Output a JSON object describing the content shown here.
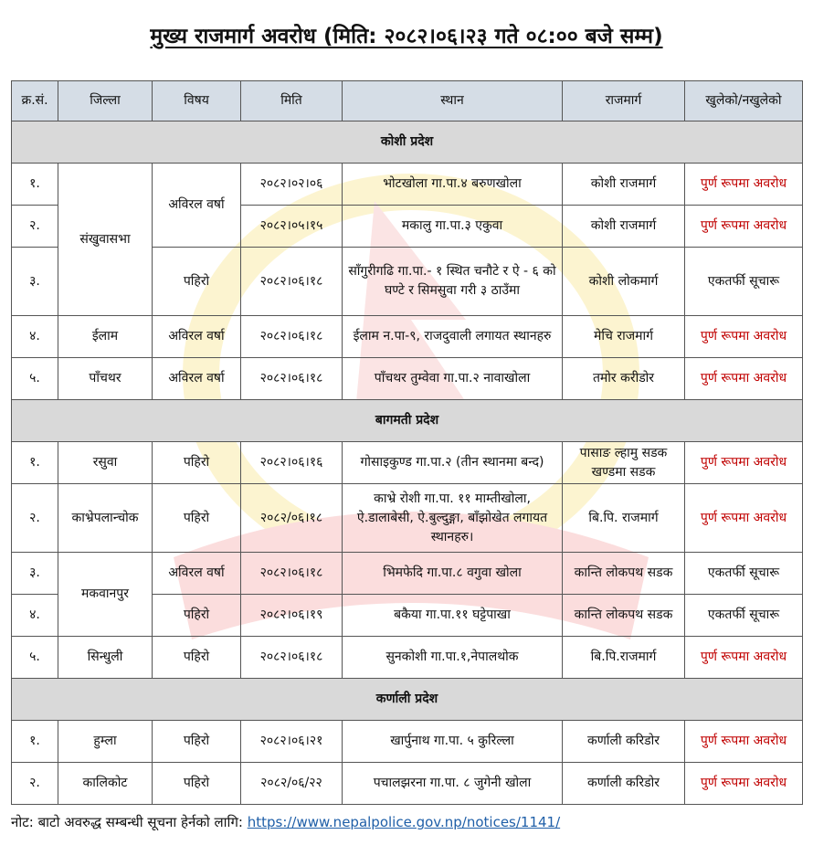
{
  "title": "मुख्य राजमार्ग अवरोध (मिति: २०८२।०६।२३ गते ०८:०० बजे सम्म)",
  "colors": {
    "blocked": "#c00000",
    "header_bg": "#d5dde6",
    "section_bg": "#d9d9d9",
    "link": "#1f5fa8"
  },
  "headers": [
    "क्र.सं.",
    "जिल्ला",
    "विषय",
    "मिति",
    "स्थान",
    "राजमार्ग",
    "खुलेको/नखुलेको"
  ],
  "sections": [
    {
      "name": "कोशी प्रदेश",
      "rows": [
        {
          "sn": "१.",
          "district": "संखुवासभा",
          "subject": "अविरल वर्षा",
          "date": "२०८२।०२।०६",
          "place": "भोटखोला गा.पा.४ बरुणखोला",
          "highway": "कोशी राजमार्ग",
          "status": "पुर्ण रूपमा अवरोध"
        },
        {
          "sn": "२.",
          "date": "२०८२।०५।१५",
          "place": "मकालु गा.पा.३ एकुवा",
          "highway": "कोशी राजमार्ग",
          "status": "पुर्ण रूपमा अवरोध"
        },
        {
          "sn": "३.",
          "subject": "पहिरो",
          "date": "२०८२।०६।१८",
          "place": "साँगुरीगढि गा.पा.- १ स्थित चनौटे र ऐ - ६ को घण्टे र सिमसुवा गरी ३ ठाउँमा",
          "highway": "कोशी लोकमार्ग",
          "status": "एकतर्फी सूचारू"
        },
        {
          "sn": "४.",
          "district": "ईलाम",
          "subject": "अविरल वर्षा",
          "date": "२०८२।०६।१८",
          "place": "ईलाम न.पा-९, राजदुवाली लगायत स्थानहरु",
          "highway": "मेचि राजमार्ग",
          "status": "पुर्ण रूपमा अवरोध"
        },
        {
          "sn": "५.",
          "district": "पाँचथर",
          "subject": "अविरल वर्षा",
          "date": "२०८२।०६।१८",
          "place": "पाँचथर तुम्वेवा गा.पा.२ नावाखोला",
          "highway": "तमोर करीडोर",
          "status": "पुर्ण रूपमा अवरोध"
        }
      ]
    },
    {
      "name": "बागमती प्रदेश",
      "rows": [
        {
          "sn": "१.",
          "district": "रसुवा",
          "subject": "पहिरो",
          "date": "२०८२।०६।१६",
          "place": "गोसाइकुण्ड गा.पा.२ (तीन स्थानमा बन्द)",
          "highway": "पासाङ ल्हामु सडक खण्डमा सडक",
          "status": "पुर्ण रूपमा अवरोध"
        },
        {
          "sn": "२.",
          "district": "काभ्रेपलान्चोक",
          "subject": "पहिरो",
          "date": "२०८२/०६।१८",
          "place": "काभ्रे रोशी गा.पा. ११ माम्तीखोला, ऐ.डालाबेसी, ऐ.बुल्दुङ्गा, बाँझोखेत लगायत स्थानहरु।",
          "highway": "बि.पि. राजमार्ग",
          "status": "पुर्ण रूपमा अवरोध"
        },
        {
          "sn": "३.",
          "district": "मकवानपुर",
          "subject": "अविरल वर्षा",
          "date": "२०८२।०६।१८",
          "place": "भिमफेदि गा.पा.८ वगुवा खोला",
          "highway": "कान्ति लोकपथ सडक",
          "status": "एकतर्फी  सूचारू"
        },
        {
          "sn": "४.",
          "subject": "पहिरो",
          "date": "२०८२।०६।१९",
          "place": "बकैया गा.पा.११ घट्टेपाखा",
          "highway": "कान्ति लोकपथ सडक",
          "status": "एकतर्फी  सूचारू"
        },
        {
          "sn": "५.",
          "district": "सिन्धुली",
          "subject": "पहिरो",
          "date": "२०८२।०६।१८",
          "place": "सुनकोशी गा.पा.१,नेपालथोक",
          "highway": "बि.पि.राजमार्ग",
          "status": "पुर्ण रूपमा अवरोध"
        }
      ]
    },
    {
      "name": "कर्णाली प्रदेश",
      "rows": [
        {
          "sn": "१.",
          "district": "हुम्ला",
          "subject": "पहिरो",
          "date": "२०८२।०६।२१",
          "place": "खार्पुनाथ गा.पा. ५ कुरिल्ला",
          "highway": "कर्णाली करिडोर",
          "status": "पुर्ण रूपमा अवरोध"
        },
        {
          "sn": "२.",
          "district": "कालिकोट",
          "subject": "पहिरो",
          "date": "२०८२/०६/२२",
          "place": "पचालझरना गा.पा. ८ जुगेनी खोला",
          "highway": "कर्णाली करिडोर",
          "status": "पुर्ण रूपमा अवरोध"
        }
      ]
    }
  ],
  "note": {
    "label": "नोट: बाटो अवरुद्ध सम्बन्धी सूचना हेर्नको लागि:",
    "link": "https://www.nepalpolice.gov.np/notices/1141/"
  }
}
